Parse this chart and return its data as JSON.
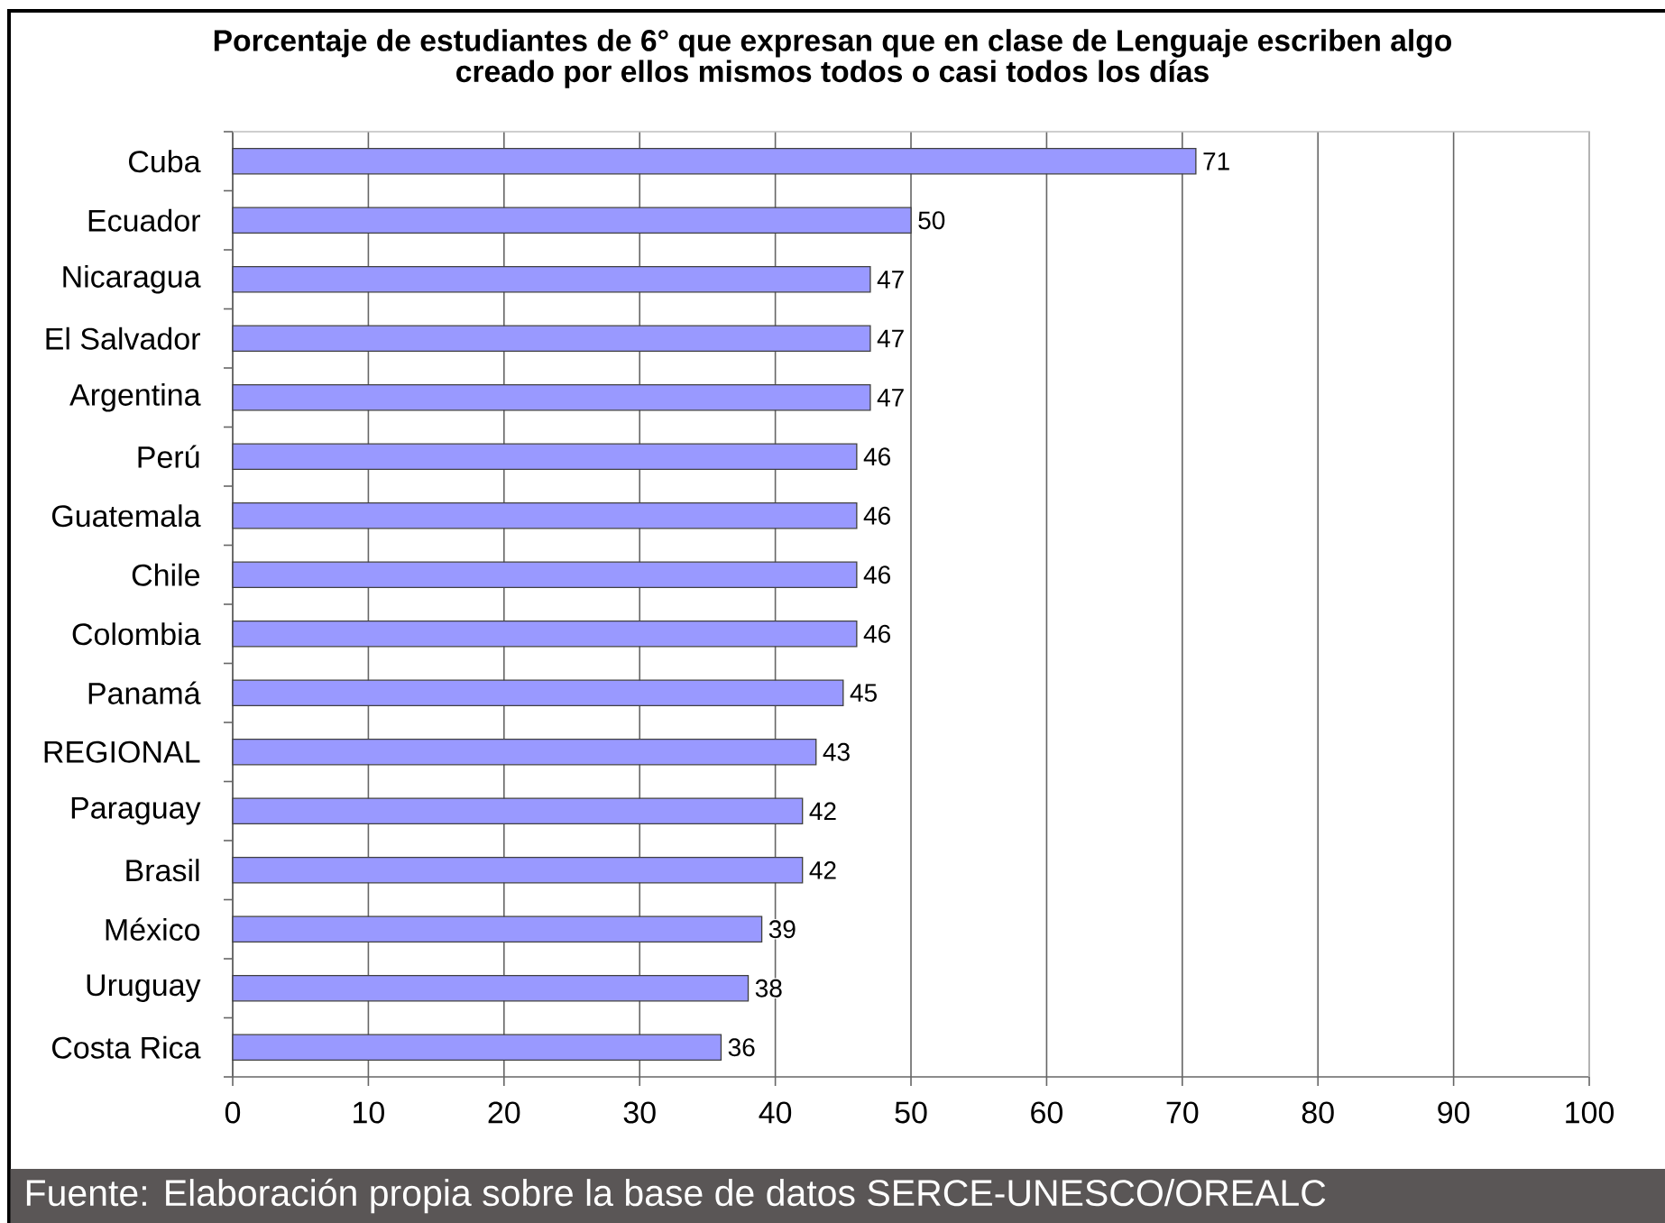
{
  "chart_data": {
    "type": "bar",
    "orientation": "horizontal",
    "title": "Porcentaje de estudiantes de 6° que expresan que en clase de Lenguaje escriben algo creado por ellos mismos todos o casi todos los días",
    "categories": [
      "Cuba",
      "Ecuador",
      "Nicaragua",
      "El Salvador",
      "Argentina",
      "Perú",
      "Guatemala",
      "Chile",
      "Colombia",
      "Panamá",
      "REGIONAL",
      "Paraguay",
      "Brasil",
      "México",
      "Uruguay",
      "Costa Rica"
    ],
    "values": [
      71,
      50,
      47,
      47,
      47,
      46,
      46,
      46,
      46,
      45,
      43,
      42,
      42,
      39,
      38,
      36
    ],
    "color": "#9999ff",
    "xlim": [
      0,
      100
    ],
    "xticks": [
      0,
      10,
      20,
      30,
      40,
      50,
      60,
      70,
      80,
      90,
      100
    ],
    "grid": "x",
    "data_labels": true,
    "annotations": [
      "Fuente: Elaboración propia sobre la base de datos SERCE-UNESCO/OREALC"
    ]
  }
}
